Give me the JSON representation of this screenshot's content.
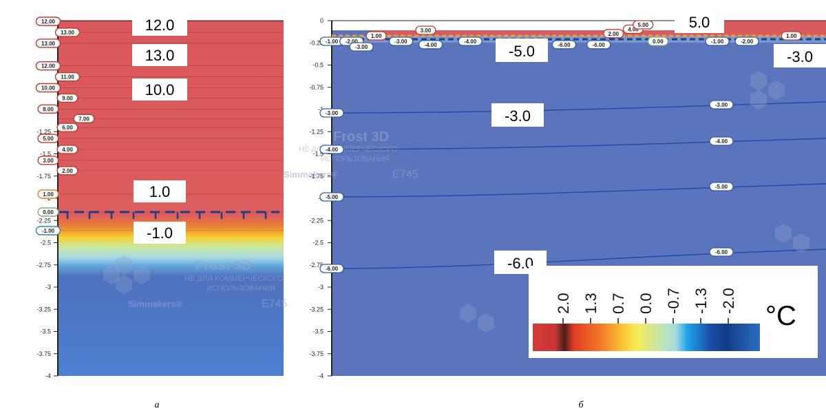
{
  "chart_data": [
    {
      "type": "heatmap",
      "panel_caption": "а",
      "y_ticks": [
        "0",
        "-0.25",
        "-0.5",
        "-0.75",
        "-1",
        "-1.25",
        "-1.5",
        "-1.75",
        "-2",
        "-2.25",
        "-2.5",
        "-2.75",
        "-3",
        "-3.25",
        "-3.5",
        "-3.75",
        "-4"
      ],
      "ylim": [
        -4,
        0
      ],
      "contour_labels": [
        {
          "text": "12.00",
          "y": -0.01,
          "col": 0,
          "color": "#c0392b"
        },
        {
          "text": "13.00",
          "y": -0.17,
          "col": 1,
          "color": "#c0392b"
        },
        {
          "text": "13.00",
          "y": -0.33,
          "col": 0,
          "color": "#c0392b"
        },
        {
          "text": "12.00",
          "y": -0.66,
          "col": 0,
          "color": "#c0392b"
        },
        {
          "text": "11.00",
          "y": -0.82,
          "col": 1,
          "color": "#c0392b"
        },
        {
          "text": "10.00",
          "y": -0.98,
          "col": 0,
          "color": "#c0392b"
        },
        {
          "text": "9.00",
          "y": -1.13,
          "col": 1,
          "color": "#c0392b"
        },
        {
          "text": "8.00",
          "y": -1.29,
          "col": 0,
          "color": "#c0392b"
        },
        {
          "text": "7.00",
          "y": -1.43,
          "col": 2,
          "color": "#c0392b"
        },
        {
          "text": "6.00",
          "y": -1.56,
          "col": 1,
          "color": "#c0392b"
        },
        {
          "text": "5.00",
          "y": -1.72,
          "col": 0,
          "color": "#c0392b"
        },
        {
          "text": "4.00",
          "y": -1.88,
          "col": 1,
          "color": "#c0392b"
        },
        {
          "text": "3.00",
          "y": -2.04,
          "col": 0,
          "color": "#c0392b"
        },
        {
          "text": "2.00",
          "y": -2.19,
          "col": 1,
          "color": "#c0392b"
        },
        {
          "text": "1.00",
          "y": -2.36,
          "col": 0,
          "color": "#e67e22"
        },
        {
          "text": "0.00",
          "y": -2.6,
          "col": 0,
          "color": "#7fb069"
        },
        {
          "text": "-1.00",
          "y": -2.82,
          "col": 0,
          "color": "#2e86c1"
        }
      ],
      "annotations": [
        "12.0",
        "13.0",
        "10.0",
        "1.0",
        "-1.0"
      ],
      "watermark": {
        "title": "Frost 3D",
        "line1": "НЕ ДЛЯ КОММЕРЧЕСКОГО",
        "line2": "ИСПОЛЬЗОВАНИЯ",
        "brand": "Simmakers®",
        "code": "E745"
      }
    },
    {
      "type": "heatmap",
      "panel_caption": "б",
      "y_ticks": [
        "0",
        "-0.25",
        "-0.5",
        "-0.75",
        "-1",
        "-1.25",
        "-1.5",
        "-1.75",
        "-2",
        "-2.25",
        "-2.5",
        "-2.75",
        "-3",
        "-3.25",
        "-3.5",
        "-3.75",
        "-4"
      ],
      "ylim": [
        -4,
        0
      ],
      "contour_lines": [
        {
          "label": "-3.00",
          "y_left": -1.06,
          "y_right": -0.94
        },
        {
          "label": "-4.00",
          "y_left": -1.47,
          "y_right": -1.31
        },
        {
          "label": "-5.00",
          "y_left": -1.97,
          "y_right": -1.78
        },
        {
          "label": "-6.00",
          "y_left": -2.78,
          "y_right": -2.55
        }
      ],
      "top_labels": [
        {
          "text": "-1.00",
          "xf": 0.0,
          "row": 0
        },
        {
          "text": "-2.00",
          "xf": 0.04,
          "row": 0
        },
        {
          "text": "1.00",
          "xf": 0.09,
          "row": -1
        },
        {
          "text": "-3.00",
          "xf": 0.06,
          "row": 1
        },
        {
          "text": "-3.00",
          "xf": 0.14,
          "row": 0
        },
        {
          "text": "3.00",
          "xf": 0.19,
          "row": -2
        },
        {
          "text": "-4.00",
          "xf": 0.2,
          "row": 0.6
        },
        {
          "text": "-4.00",
          "xf": 0.28,
          "row": 0
        },
        {
          "text": "-6.00",
          "xf": 0.47,
          "row": 0.6
        },
        {
          "text": "-6.00",
          "xf": 0.54,
          "row": 0.6
        },
        {
          "text": "2.00",
          "xf": 0.57,
          "row": -1.4
        },
        {
          "text": "4.00",
          "xf": 0.61,
          "row": -2.2
        },
        {
          "text": "5.00",
          "xf": 0.63,
          "row": -3
        },
        {
          "text": "0.00",
          "xf": 0.66,
          "row": 0
        },
        {
          "text": "-1.00",
          "xf": 0.78,
          "row": 0
        },
        {
          "text": "-2.00",
          "xf": 0.84,
          "row": 0
        },
        {
          "text": "1.00",
          "xf": 0.93,
          "row": -1
        }
      ],
      "right_labels": [
        "-3.00",
        "-4.00",
        "-5.00",
        "-6.00"
      ],
      "annotations": [
        {
          "text": "5.0",
          "key": "a5"
        },
        {
          "text": "-5.0",
          "key": "am5"
        },
        {
          "text": "-3.0",
          "key": "am3r"
        },
        {
          "text": "-3.0",
          "key": "am3"
        },
        {
          "text": "-6.0",
          "key": "am6"
        }
      ],
      "colorbar": {
        "ticks": [
          "2.0",
          "1.3",
          "0.7",
          "0.0",
          "-0.7",
          "-1.3",
          "-2.0"
        ],
        "unit": "°C"
      },
      "watermark": {
        "title": "Frost 3D",
        "line1": "НЕ ДЛЯ КОММЕРЧЕСКОГО",
        "line2": "ИСПОЛЬЗОВАНИЯ",
        "brand": "Simmakers®",
        "code": "E745"
      }
    }
  ]
}
